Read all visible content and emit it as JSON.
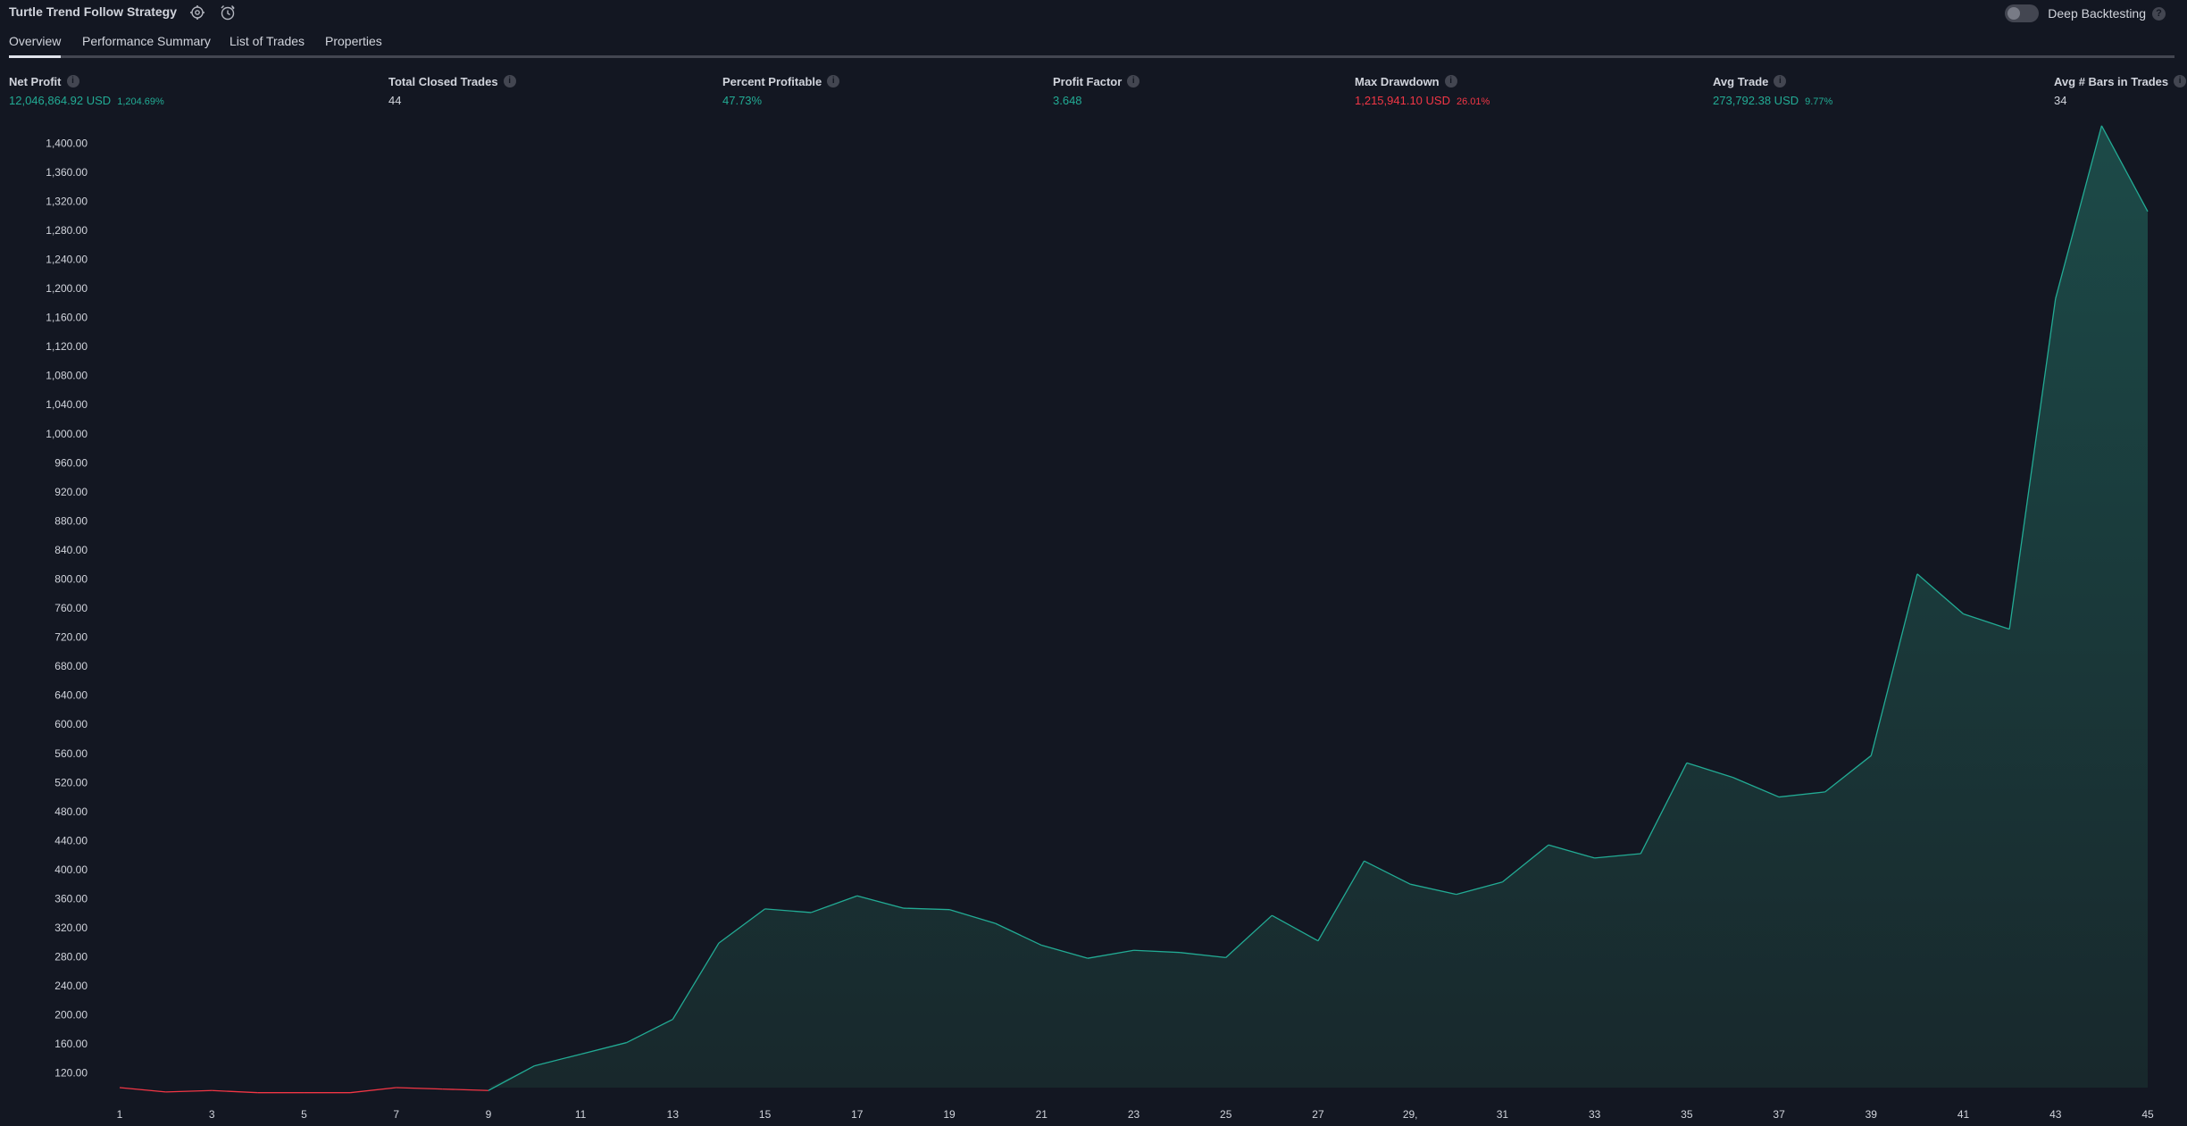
{
  "header": {
    "title": "Turtle Trend Follow Strategy",
    "deep_backtesting_label": "Deep Backtesting",
    "help_glyph": "?"
  },
  "tabs": [
    {
      "label": "Overview",
      "active": true
    },
    {
      "label": "Performance Summary",
      "active": false
    },
    {
      "label": "List of Trades",
      "active": false
    },
    {
      "label": "Properties",
      "active": false
    }
  ],
  "metrics": [
    {
      "label": "Net Profit",
      "value": "12,046,864.92 USD",
      "pct": "1,204.69%",
      "color": "#22ab94"
    },
    {
      "label": "Total Closed Trades",
      "value": "44",
      "pct": "",
      "color": "#d1d4dc"
    },
    {
      "label": "Percent Profitable",
      "value": "47.73%",
      "pct": "",
      "color": "#22ab94"
    },
    {
      "label": "Profit Factor",
      "value": "3.648",
      "pct": "",
      "color": "#22ab94"
    },
    {
      "label": "Max Drawdown",
      "value": "1,215,941.10 USD",
      "pct": "26.01%",
      "color": "#f23645"
    },
    {
      "label": "Avg Trade",
      "value": "273,792.38 USD",
      "pct": "9.77%",
      "color": "#22ab94"
    },
    {
      "label": "Avg # Bars in Trades",
      "value": "34",
      "pct": "",
      "color": "#d1d4dc"
    }
  ],
  "icons": {
    "settings": "gear-icon",
    "alert": "alarm-clock-icon",
    "info": "info-icon"
  },
  "chart_data": {
    "type": "area",
    "title": "",
    "xlabel": "",
    "ylabel": "",
    "x_ticks": [
      1,
      3,
      5,
      7,
      9,
      11,
      13,
      15,
      17,
      19,
      21,
      23,
      25,
      27,
      29,
      31,
      33,
      35,
      37,
      39,
      41,
      43,
      45
    ],
    "x_tick_labels": [
      "1",
      "3",
      "5",
      "7",
      "9",
      "11",
      "13",
      "15",
      "17",
      "19",
      "21",
      "23",
      "25",
      "27",
      "29,",
      "31",
      "33",
      "35",
      "37",
      "39",
      "41",
      "43",
      "45"
    ],
    "y_ticks": [
      120,
      160,
      200,
      240,
      280,
      320,
      360,
      400,
      440,
      480,
      520,
      560,
      600,
      640,
      680,
      720,
      760,
      800,
      840,
      880,
      920,
      960,
      1000,
      1040,
      1080,
      1120,
      1160,
      1200,
      1240,
      1280,
      1320,
      1360,
      1400
    ],
    "y_tick_labels": [
      "120.00",
      "160.00",
      "200.00",
      "240.00",
      "280.00",
      "320.00",
      "360.00",
      "400.00",
      "440.00",
      "480.00",
      "520.00",
      "560.00",
      "600.00",
      "640.00",
      "680.00",
      "720.00",
      "760.00",
      "800.00",
      "840.00",
      "880.00",
      "920.00",
      "960.00",
      "1,000.00",
      "1,040.00",
      "1,080.00",
      "1,120.00",
      "1,160.00",
      "1,200.00",
      "1,240.00",
      "1,280.00",
      "1,320.00",
      "1,360.00",
      "1,400.00"
    ],
    "xlim": [
      1,
      45
    ],
    "ylim": [
      100,
      1425
    ],
    "baseline": 100,
    "grid": false,
    "series": [
      {
        "values": [
          {
            "x": 1,
            "y": 100
          },
          {
            "x": 2,
            "y": 94
          },
          {
            "x": 3,
            "y": 96
          },
          {
            "x": 4,
            "y": 93
          },
          {
            "x": 5,
            "y": 93
          },
          {
            "x": 6,
            "y": 93
          },
          {
            "x": 7,
            "y": 100
          },
          {
            "x": 8,
            "y": 98
          },
          {
            "x": 9,
            "y": 96
          },
          {
            "x": 10,
            "y": 130
          },
          {
            "x": 11,
            "y": 146
          },
          {
            "x": 12,
            "y": 162
          },
          {
            "x": 13,
            "y": 194
          },
          {
            "x": 14,
            "y": 299
          },
          {
            "x": 15,
            "y": 346
          },
          {
            "x": 16,
            "y": 341
          },
          {
            "x": 17,
            "y": 364
          },
          {
            "x": 18,
            "y": 347
          },
          {
            "x": 19,
            "y": 345
          },
          {
            "x": 20,
            "y": 326
          },
          {
            "x": 21,
            "y": 296
          },
          {
            "x": 22,
            "y": 278
          },
          {
            "x": 23,
            "y": 289
          },
          {
            "x": 24,
            "y": 286
          },
          {
            "x": 25,
            "y": 279
          },
          {
            "x": 26,
            "y": 337
          },
          {
            "x": 27,
            "y": 302
          },
          {
            "x": 28,
            "y": 412
          },
          {
            "x": 29,
            "y": 380
          },
          {
            "x": 30,
            "y": 366
          },
          {
            "x": 31,
            "y": 383
          },
          {
            "x": 32,
            "y": 434
          },
          {
            "x": 33,
            "y": 416
          },
          {
            "x": 34,
            "y": 422
          },
          {
            "x": 35,
            "y": 547
          },
          {
            "x": 36,
            "y": 527
          },
          {
            "x": 37,
            "y": 500
          },
          {
            "x": 38,
            "y": 507
          },
          {
            "x": 39,
            "y": 557
          },
          {
            "x": 40,
            "y": 807
          },
          {
            "x": 41,
            "y": 752
          },
          {
            "x": 42,
            "y": 731
          },
          {
            "x": 43,
            "y": 1186
          },
          {
            "x": 44,
            "y": 1424
          },
          {
            "x": 45,
            "y": 1306
          }
        ]
      }
    ],
    "colors": {
      "up_line": "#22ab94",
      "down_line": "#f23645",
      "fill_top": "#1c4a48",
      "fill_bottom": "#18282c"
    }
  }
}
